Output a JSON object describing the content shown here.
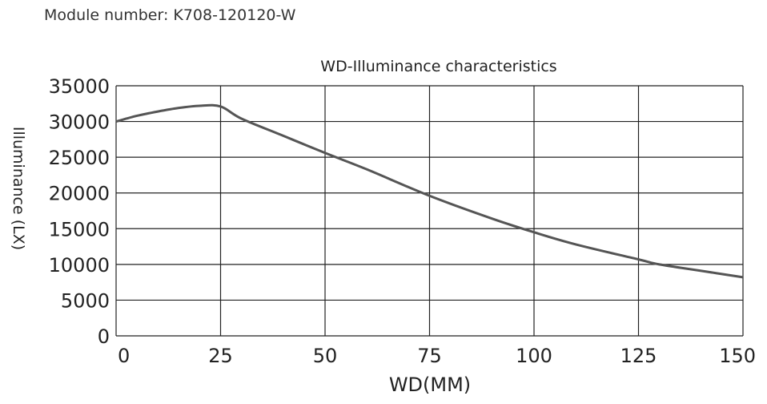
{
  "module_label": "Module number: K708-120120-W",
  "chart_data": {
    "type": "line",
    "title": "WD-Illuminance characteristics",
    "xlabel": "WD(MM)",
    "ylabel": "Illuminance (LX)",
    "xlim": [
      0,
      150
    ],
    "ylim": [
      0,
      35000
    ],
    "xticks": [
      "0",
      "25",
      "50",
      "75",
      "100",
      "125",
      "150"
    ],
    "yticks": [
      "0",
      "5000",
      "10000",
      "15000",
      "20000",
      "25000",
      "30000",
      "35000"
    ],
    "grid": true,
    "colors": {
      "line": "#555555",
      "grid": "#222222"
    },
    "series": [
      {
        "x": [
          0,
          5,
          10,
          15,
          20,
          25,
          30,
          40,
          50,
          60,
          75,
          90,
          100,
          110,
          125,
          130,
          140,
          150
        ],
        "values": [
          30000,
          30800,
          31400,
          31900,
          32200,
          32100,
          30400,
          28000,
          25600,
          23300,
          19600,
          16400,
          14500,
          12800,
          10700,
          10000,
          9100,
          8200
        ]
      }
    ]
  }
}
